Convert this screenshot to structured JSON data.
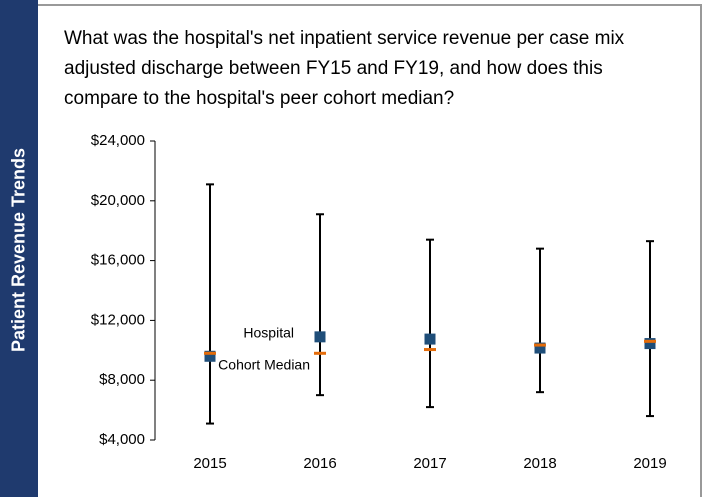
{
  "sidebar": "Patient Revenue Trends",
  "chart_data": {
    "type": "range",
    "title": "What was the hospital's net inpatient service revenue per case mix adjusted discharge between FY15 and FY19, and how does this compare to the hospital's peer cohort median?",
    "categories": [
      "2015",
      "2016",
      "2017",
      "2018",
      "2019"
    ],
    "low": [
      5100,
      7000,
      6200,
      7200,
      5600
    ],
    "high": [
      21100,
      19100,
      17400,
      16800,
      17300
    ],
    "whisker_color": "#000000",
    "series": [
      {
        "name": "Hospital",
        "color": "#1f4e79",
        "values": [
          9600,
          10900,
          10750,
          10150,
          10450
        ]
      },
      {
        "name": "Cohort Median",
        "color": "#e46c0a",
        "values": [
          9800,
          9800,
          10050,
          10350,
          10600
        ]
      }
    ],
    "ylim": [
      4000,
      24000
    ],
    "yticks": [
      {
        "value": 4000,
        "label": "$4,000"
      },
      {
        "value": 8000,
        "label": "$8,000"
      },
      {
        "value": 12000,
        "label": "$12,000"
      },
      {
        "value": 16000,
        "label": "$16,000"
      },
      {
        "value": 20000,
        "label": "$20,000"
      },
      {
        "value": 24000,
        "label": "$24,000"
      }
    ]
  }
}
